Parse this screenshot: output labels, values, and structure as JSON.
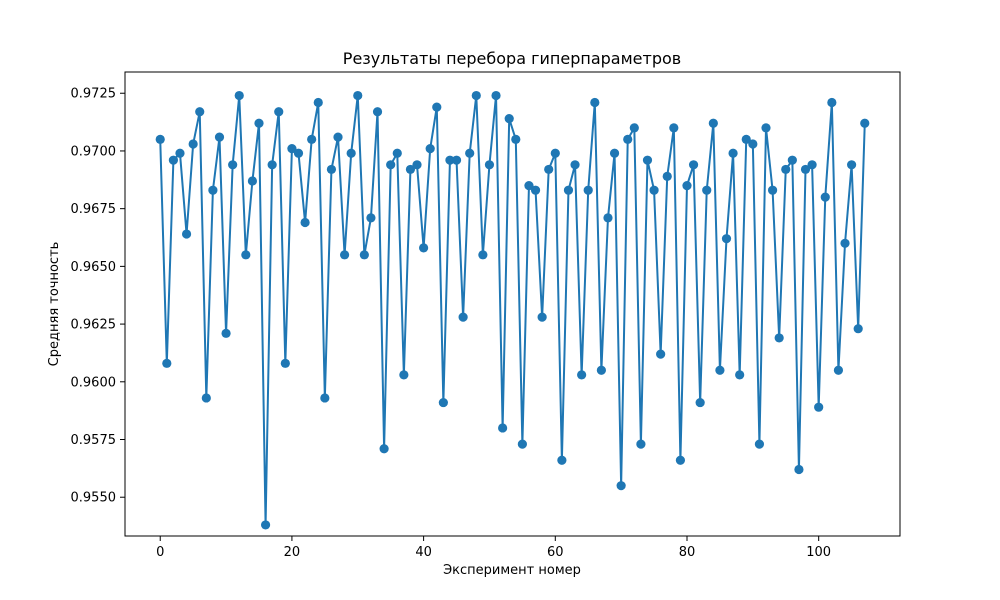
{
  "chart_data": {
    "type": "line",
    "title": "Результаты перебора гиперпараметров",
    "xlabel": "Эксперимент номер",
    "ylabel": "Средняя точность",
    "xlim": [
      -5.35,
      112.35
    ],
    "ylim": [
      0.95332,
      0.97342
    ],
    "x_ticks": [
      0,
      20,
      40,
      60,
      80,
      100
    ],
    "y_ticks": [
      0.955,
      0.9575,
      0.96,
      0.9625,
      0.965,
      0.9675,
      0.97,
      0.9725
    ],
    "x_tick_labels": [
      "0",
      "20",
      "40",
      "60",
      "80",
      "100"
    ],
    "y_tick_labels": [
      "0.9550",
      "0.9575",
      "0.9600",
      "0.9625",
      "0.9650",
      "0.9675",
      "0.9700",
      "0.9725"
    ],
    "grid": false,
    "markers": true,
    "series": [
      {
        "color": "#1f77b4",
        "x": [
          0,
          1,
          2,
          3,
          4,
          5,
          6,
          7,
          8,
          9,
          10,
          11,
          12,
          13,
          14,
          15,
          16,
          17,
          18,
          19,
          20,
          21,
          22,
          23,
          24,
          25,
          26,
          27,
          28,
          29,
          30,
          31,
          32,
          33,
          34,
          35,
          36,
          37,
          38,
          39,
          40,
          41,
          42,
          43,
          44,
          45,
          46,
          47,
          48,
          49,
          50,
          51,
          52,
          53,
          54,
          55,
          56,
          57,
          58,
          59,
          60,
          61,
          62,
          63,
          64,
          65,
          66,
          67,
          68,
          69,
          70,
          71,
          72,
          73,
          74,
          75,
          76,
          77,
          78,
          79,
          80,
          81,
          82,
          83,
          84,
          85,
          86,
          87,
          88,
          89,
          90,
          91,
          92,
          93,
          94,
          95,
          96,
          97,
          98,
          99,
          100,
          101,
          102,
          103,
          104,
          105,
          106,
          107
        ],
        "values": [
          0.9705,
          0.9608,
          0.9696,
          0.9699,
          0.9664,
          0.9703,
          0.9717,
          0.9593,
          0.9683,
          0.9706,
          0.9621,
          0.9694,
          0.9724,
          0.9655,
          0.9687,
          0.9712,
          0.9538,
          0.9694,
          0.9717,
          0.9608,
          0.9701,
          0.9699,
          0.9669,
          0.9705,
          0.9721,
          0.9593,
          0.9692,
          0.9706,
          0.9655,
          0.9699,
          0.9724,
          0.9655,
          0.9671,
          0.9717,
          0.9571,
          0.9694,
          0.9699,
          0.9603,
          0.9692,
          0.9694,
          0.9658,
          0.9701,
          0.9719,
          0.9591,
          0.9696,
          0.9696,
          0.9628,
          0.9699,
          0.9724,
          0.9655,
          0.9694,
          0.9724,
          0.958,
          0.9714,
          0.9705,
          0.9573,
          0.9685,
          0.9683,
          0.9628,
          0.9692,
          0.9699,
          0.9566,
          0.9683,
          0.9694,
          0.9603,
          0.9683,
          0.9721,
          0.9605,
          0.9671,
          0.9699,
          0.9555,
          0.9705,
          0.971,
          0.9573,
          0.9696,
          0.9683,
          0.9612,
          0.9689,
          0.971,
          0.9566,
          0.9685,
          0.9694,
          0.9591,
          0.9683,
          0.9712,
          0.9605,
          0.9662,
          0.9699,
          0.9603,
          0.9705,
          0.9703,
          0.9573,
          0.971,
          0.9683,
          0.9619,
          0.9692,
          0.9696,
          0.9562,
          0.9692,
          0.9694,
          0.9589,
          0.968,
          0.9721,
          0.9605,
          0.966,
          0.9694,
          0.9623,
          0.9712
        ]
      }
    ]
  }
}
